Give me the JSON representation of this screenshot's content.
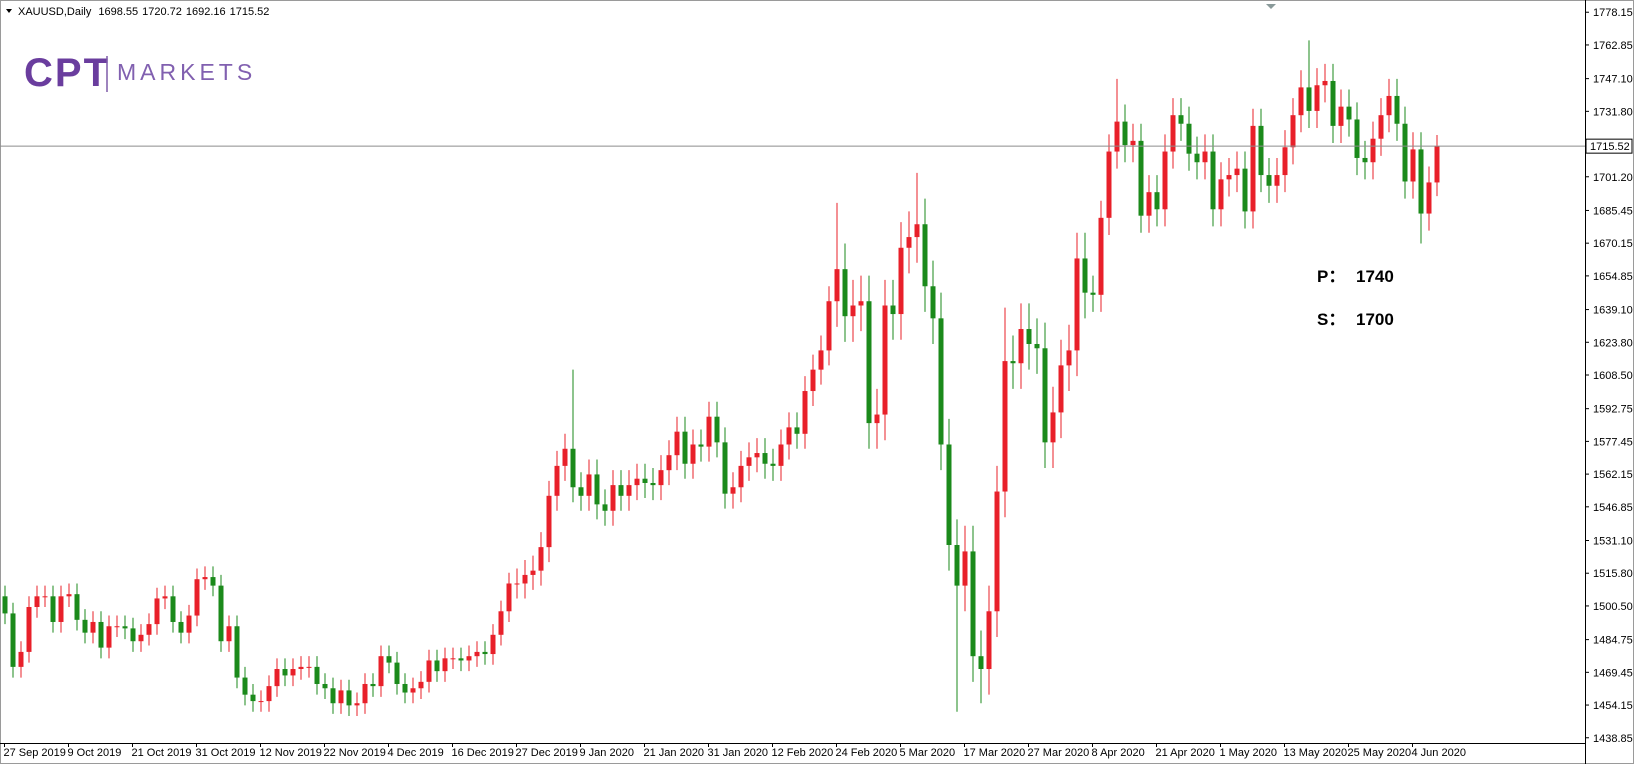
{
  "chart_data": {
    "type": "candlestick",
    "symbol": "XAUUSD,Daily",
    "logo": {
      "mark": "CPT",
      "name": "MARKETS"
    },
    "annotations": [
      {
        "label": "P：",
        "value": 1740
      },
      {
        "label": "S：",
        "value": 1700
      }
    ],
    "up_color": "#e8202a",
    "down_color": "#1b8a1b",
    "ylim": [
      1436.4,
      1782.0
    ],
    "yticks": [
      1778.15,
      1762.85,
      {
        "value": 1747.1,
        "label": "1747.10"
      },
      {
        "value": 1731.8,
        "label": "1731.80"
      },
      {
        "value": 1701.2,
        "label": "1701.20"
      },
      1685.45,
      1670.15,
      1654.85,
      {
        "value": 1639.1,
        "label": "1639.10"
      },
      {
        "value": 1623.8,
        "label": "1623.80"
      },
      {
        "value": 1608.5,
        "label": "1608.50"
      },
      1592.75,
      1577.45,
      1562.15,
      1546.85,
      {
        "value": 1531.1,
        "label": "1531.10"
      },
      {
        "value": 1515.8,
        "label": "1515.80"
      },
      {
        "value": 1500.5,
        "label": "1500.50"
      },
      1484.75,
      1469.45,
      1454.15,
      1438.85
    ],
    "categories": [
      "27 Sep 2019",
      null,
      null,
      null,
      null,
      null,
      null,
      null,
      "9 Oct 2019",
      null,
      null,
      null,
      null,
      null,
      null,
      null,
      "21 Oct 2019",
      null,
      null,
      null,
      null,
      null,
      null,
      null,
      "31 Oct 2019",
      null,
      null,
      null,
      null,
      null,
      null,
      null,
      "12 Nov 2019",
      null,
      null,
      null,
      null,
      null,
      null,
      null,
      "22 Nov 2019",
      null,
      null,
      null,
      null,
      null,
      null,
      null,
      "4 Dec 2019",
      null,
      null,
      null,
      null,
      null,
      null,
      null,
      "16 Dec 2019",
      null,
      null,
      null,
      null,
      null,
      null,
      null,
      "27 Dec 2019",
      null,
      null,
      null,
      null,
      null,
      null,
      null,
      "9 Jan 2020",
      null,
      null,
      null,
      null,
      null,
      null,
      null,
      "21 Jan 2020",
      null,
      null,
      null,
      null,
      null,
      null,
      null,
      "31 Jan 2020",
      null,
      null,
      null,
      null,
      null,
      null,
      null,
      "12 Feb 2020",
      null,
      null,
      null,
      null,
      null,
      null,
      null,
      "24 Feb 2020",
      null,
      null,
      null,
      null,
      null,
      null,
      null,
      "5 Mar 2020",
      null,
      null,
      null,
      null,
      null,
      null,
      null,
      "17 Mar 2020",
      null,
      null,
      null,
      null,
      null,
      null,
      null,
      "27 Mar 2020",
      null,
      null,
      null,
      null,
      null,
      null,
      null,
      "8 Apr 2020",
      null,
      null,
      null,
      null,
      null,
      null,
      null,
      "21 Apr 2020",
      null,
      null,
      null,
      null,
      null,
      null,
      null,
      "1 May 2020",
      null,
      null,
      null,
      null,
      null,
      null,
      null,
      "13 May 2020",
      null,
      null,
      null,
      null,
      null,
      null,
      null,
      "25 May 2020",
      null,
      null,
      null,
      null,
      null,
      null,
      null,
      "4 Jun 2020",
      null,
      null,
      null
    ],
    "open": [
      1505,
      1497,
      1472,
      1479,
      1500,
      1505,
      1505,
      1493,
      1505,
      1506,
      1494,
      1488,
      1493,
      1481,
      1491,
      1491,
      1490,
      1484,
      1487,
      1492,
      1504,
      1505,
      1493,
      1488,
      1496,
      1513,
      1514,
      1510,
      1484,
      1491,
      1467,
      1459,
      1456,
      1456,
      1463,
      1471,
      1468,
      1471,
      1472,
      1472,
      1464,
      1462,
      1455,
      1461,
      1454,
      1455,
      1464,
      1463,
      1477,
      1474,
      1464,
      1460,
      1462,
      1465,
      1475,
      1470,
      1476,
      1476,
      1475,
      1477,
      1479,
      1478,
      1487,
      1498,
      1511,
      1511,
      1515,
      1517,
      1528,
      1552,
      1566,
      1574,
      1556,
      1552,
      1562,
      1548,
      1545,
      1557,
      1552,
      1557,
      1560,
      1558,
      1557,
      1564,
      1571,
      1582,
      1567,
      1576,
      1575,
      1589,
      1577,
      1553,
      1556,
      1566,
      1570,
      1572,
      1567,
      1566,
      1576,
      1584,
      1581,
      1601,
      1611,
      1620,
      1643,
      1658,
      1636,
      1641,
      1643,
      1586,
      1590,
      1641,
      1637,
      1668,
      1673,
      1679,
      1650,
      1635,
      1576,
      1529,
      1510,
      1526,
      1477,
      1471,
      1498,
      1554,
      1615,
      1614,
      1630,
      1623,
      1621,
      1577,
      1591,
      1613,
      1620,
      1663,
      1647,
      1646,
      1682,
      1713,
      1727,
      1716,
      1718,
      1683,
      1694,
      1686,
      1713,
      1730,
      1726,
      1712,
      1708,
      1713,
      1686,
      1700,
      1702,
      1705,
      1685,
      1725,
      1702,
      1697,
      1702,
      1715,
      1730,
      1743,
      1732,
      1744,
      1746,
      1725,
      1734,
      1728,
      1710,
      1708,
      1719,
      1730,
      1739,
      1726,
      1699,
      1714,
      1684,
      1698.55
    ],
    "high": [
      1510,
      1502,
      1484,
      1505,
      1510,
      1510,
      1510,
      1510,
      1511,
      1511,
      1499,
      1498,
      1498,
      1496,
      1496,
      1496,
      1495,
      1492,
      1497,
      1509,
      1510,
      1510,
      1498,
      1501,
      1518,
      1519,
      1519,
      1515,
      1496,
      1496,
      1472,
      1464,
      1461,
      1468,
      1476,
      1476,
      1476,
      1477,
      1477,
      1477,
      1469,
      1467,
      1466,
      1466,
      1460,
      1469,
      1469,
      1482,
      1482,
      1479,
      1469,
      1467,
      1470,
      1480,
      1480,
      1481,
      1481,
      1481,
      1482,
      1484,
      1484,
      1492,
      1503,
      1516,
      1518,
      1522,
      1524,
      1535,
      1559,
      1573,
      1581,
      1611,
      1563,
      1569,
      1569,
      1555,
      1564,
      1564,
      1564,
      1567,
      1567,
      1565,
      1571,
      1578,
      1589,
      1589,
      1583,
      1583,
      1596,
      1596,
      1584,
      1563,
      1573,
      1577,
      1579,
      1579,
      1574,
      1583,
      1591,
      1591,
      1608,
      1618,
      1627,
      1650,
      1689,
      1670,
      1653,
      1655,
      1655,
      1602,
      1653,
      1653,
      1680,
      1685,
      1703,
      1691,
      1662,
      1647,
      1588,
      1541,
      1538,
      1538,
      1489,
      1510,
      1566,
      1640,
      1627,
      1642,
      1642,
      1635,
      1633,
      1603,
      1625,
      1632,
      1675,
      1675,
      1655,
      1690,
      1721,
      1747,
      1735,
      1726,
      1726,
      1702,
      1702,
      1721,
      1738,
      1738,
      1734,
      1720,
      1721,
      1721,
      1708,
      1710,
      1713,
      1713,
      1733,
      1733,
      1710,
      1710,
      1723,
      1738,
      1751,
      1765,
      1752,
      1754,
      1754,
      1742,
      1742,
      1736,
      1718,
      1727,
      1738,
      1747,
      1747,
      1734,
      1722,
      1722,
      1706,
      1720.72
    ],
    "low": [
      1492,
      1467,
      1467,
      1474,
      1495,
      1500,
      1488,
      1488,
      1500,
      1489,
      1483,
      1483,
      1476,
      1476,
      1486,
      1485,
      1479,
      1479,
      1482,
      1487,
      1499,
      1488,
      1483,
      1483,
      1491,
      1508,
      1505,
      1479,
      1479,
      1462,
      1454,
      1451,
      1451,
      1451,
      1458,
      1463,
      1463,
      1466,
      1467,
      1459,
      1457,
      1450,
      1450,
      1449,
      1449,
      1450,
      1458,
      1458,
      1469,
      1459,
      1455,
      1455,
      1457,
      1460,
      1465,
      1465,
      1471,
      1470,
      1470,
      1472,
      1473,
      1473,
      1482,
      1493,
      1504,
      1504,
      1508,
      1510,
      1521,
      1545,
      1559,
      1549,
      1545,
      1545,
      1541,
      1538,
      1538,
      1545,
      1545,
      1550,
      1551,
      1550,
      1550,
      1557,
      1564,
      1560,
      1560,
      1568,
      1568,
      1570,
      1546,
      1546,
      1549,
      1559,
      1563,
      1560,
      1559,
      1559,
      1569,
      1574,
      1574,
      1594,
      1604,
      1613,
      1631,
      1624,
      1624,
      1629,
      1574,
      1574,
      1578,
      1625,
      1625,
      1656,
      1661,
      1638,
      1623,
      1564,
      1517,
      1451,
      1498,
      1465,
      1455,
      1459,
      1486,
      1542,
      1602,
      1602,
      1611,
      1609,
      1565,
      1565,
      1579,
      1601,
      1608,
      1635,
      1638,
      1638,
      1674,
      1705,
      1708,
      1708,
      1675,
      1675,
      1678,
      1678,
      1705,
      1718,
      1704,
      1700,
      1700,
      1678,
      1678,
      1692,
      1694,
      1677,
      1677,
      1694,
      1689,
      1689,
      1694,
      1707,
      1722,
      1724,
      1724,
      1736,
      1717,
      1717,
      1720,
      1702,
      1700,
      1700,
      1711,
      1722,
      1718,
      1691,
      1691,
      1670,
      1676,
      1692.16
    ],
    "close": [
      1497,
      1472,
      1479,
      1500,
      1505,
      1505,
      1493,
      1505,
      1506,
      1494,
      1488,
      1493,
      1481,
      1491,
      1491,
      1490,
      1484,
      1487,
      1492,
      1504,
      1505,
      1493,
      1488,
      1496,
      1513,
      1514,
      1510,
      1484,
      1491,
      1467,
      1459,
      1456,
      1456,
      1463,
      1471,
      1468,
      1471,
      1472,
      1472,
      1464,
      1462,
      1455,
      1461,
      1454,
      1455,
      1464,
      1463,
      1477,
      1474,
      1464,
      1460,
      1462,
      1465,
      1475,
      1470,
      1476,
      1476,
      1475,
      1477,
      1479,
      1478,
      1487,
      1498,
      1511,
      1511,
      1515,
      1517,
      1528,
      1552,
      1566,
      1574,
      1556,
      1552,
      1562,
      1548,
      1545,
      1557,
      1552,
      1557,
      1560,
      1558,
      1557,
      1564,
      1571,
      1582,
      1567,
      1576,
      1575,
      1589,
      1577,
      1553,
      1556,
      1566,
      1570,
      1572,
      1567,
      1566,
      1576,
      1584,
      1581,
      1601,
      1611,
      1620,
      1643,
      1658,
      1636,
      1641,
      1643,
      1586,
      1590,
      1641,
      1637,
      1668,
      1673,
      1679,
      1650,
      1635,
      1576,
      1529,
      1510,
      1526,
      1477,
      1471,
      1498,
      1554,
      1615,
      1614,
      1630,
      1623,
      1621,
      1577,
      1591,
      1613,
      1620,
      1663,
      1647,
      1646,
      1682,
      1713,
      1727,
      1716,
      1718,
      1683,
      1694,
      1686,
      1713,
      1730,
      1726,
      1712,
      1708,
      1713,
      1686,
      1700,
      1702,
      1705,
      1685,
      1725,
      1702,
      1697,
      1702,
      1715,
      1730,
      1743,
      1732,
      1744,
      1746,
      1725,
      1734,
      1728,
      1710,
      1708,
      1719,
      1730,
      1739,
      1726,
      1699,
      1714,
      1684,
      1698.55,
      1715.52
    ]
  }
}
